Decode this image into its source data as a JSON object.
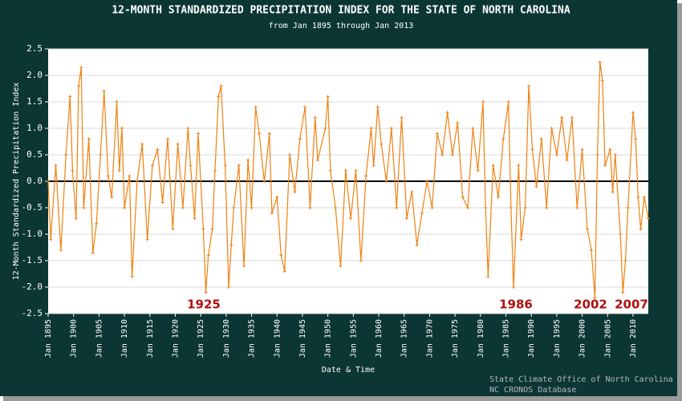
{
  "chart_data": {
    "type": "line",
    "title": "12-MONTH STANDARDIZED PRECIPITATION INDEX FOR THE STATE OF NORTH CAROLINA",
    "subtitle": "from Jan 1895 through Jan 2013",
    "y_label": "12-Month Standardized Precipitation Index",
    "x_label": "Date & Time",
    "credits": [
      "State Climate Office of North Carolina",
      "NC CRONOS Database"
    ],
    "annotations": [
      "1925",
      "1986",
      "2002",
      "2007"
    ],
    "grid": true,
    "xlim": [
      1895,
      2013
    ],
    "ylim": [
      -2.5,
      2.5
    ],
    "xticks": [
      {
        "value": 1895,
        "label": "Jan 1895"
      },
      {
        "value": 1900,
        "label": "Jan 1900"
      },
      {
        "value": 1905,
        "label": "Jan 1905"
      },
      {
        "value": 1910,
        "label": "Jan 1910"
      },
      {
        "value": 1915,
        "label": "Jan 1915"
      },
      {
        "value": 1920,
        "label": "Jan 1920"
      },
      {
        "value": 1925,
        "label": "Jan 1925"
      },
      {
        "value": 1930,
        "label": "Jan 1930"
      },
      {
        "value": 1935,
        "label": "Jan 1935"
      },
      {
        "value": 1940,
        "label": "Jan 1940"
      },
      {
        "value": 1945,
        "label": "Jan 1945"
      },
      {
        "value": 1950,
        "label": "Jan 1950"
      },
      {
        "value": 1955,
        "label": "Jan 1955"
      },
      {
        "value": 1960,
        "label": "Jan 1960"
      },
      {
        "value": 1965,
        "label": "Jan 1965"
      },
      {
        "value": 1970,
        "label": "Jan 1970"
      },
      {
        "value": 1975,
        "label": "Jan 1975"
      },
      {
        "value": 1980,
        "label": "Jan 1980"
      },
      {
        "value": 1985,
        "label": "Jan 1985"
      },
      {
        "value": 1990,
        "label": "Jan 1990"
      },
      {
        "value": 1995,
        "label": "Jan 1995"
      },
      {
        "value": 2000,
        "label": "Jan 2000"
      },
      {
        "value": 2005,
        "label": "Jan 2005"
      },
      {
        "value": 2010,
        "label": "Jan 2010"
      }
    ],
    "yticks": [
      2.5,
      {
        "value": 2,
        "label": "2.0"
      },
      1.5,
      {
        "value": 1,
        "label": "1.0"
      },
      0.5,
      {
        "value": 0,
        "label": "0.0"
      },
      -0.5,
      {
        "value": -1,
        "label": "-1.0"
      },
      -1.5,
      {
        "value": -2,
        "label": "-2.0"
      },
      -2.5
    ],
    "x": [
      1895.0,
      1895.5,
      1896.5,
      1897.5,
      1898.5,
      1899.3,
      1899.8,
      1900.5,
      1901.0,
      1901.5,
      1902.0,
      1903.0,
      1903.8,
      1904.5,
      1905.3,
      1906.0,
      1906.8,
      1907.5,
      1908.5,
      1909.0,
      1909.5,
      1910.0,
      1911.0,
      1911.5,
      1912.5,
      1913.5,
      1914.5,
      1915.5,
      1916.5,
      1917.5,
      1918.5,
      1919.5,
      1920.5,
      1921.5,
      1922.5,
      1923.0,
      1923.8,
      1924.5,
      1925.5,
      1926.0,
      1926.5,
      1927.3,
      1927.8,
      1928.5,
      1929.0,
      1929.8,
      1930.5,
      1931.0,
      1931.5,
      1932.5,
      1933.5,
      1934.3,
      1935.0,
      1935.8,
      1936.5,
      1937.5,
      1938.5,
      1939.0,
      1940.0,
      1940.8,
      1941.5,
      1942.5,
      1943.5,
      1944.5,
      1945.5,
      1946.5,
      1947.5,
      1948.0,
      1949.5,
      1950.0,
      1950.5,
      1951.5,
      1952.5,
      1953.5,
      1954.5,
      1955.5,
      1956.5,
      1957.5,
      1958.5,
      1959.0,
      1959.8,
      1960.5,
      1961.5,
      1962.5,
      1963.5,
      1964.5,
      1965.5,
      1966.5,
      1967.5,
      1968.5,
      1969.5,
      1970.5,
      1971.5,
      1972.5,
      1973.5,
      1974.5,
      1975.5,
      1976.5,
      1977.5,
      1978.5,
      1979.5,
      1980.5,
      1981.0,
      1981.5,
      1982.5,
      1983.5,
      1984.5,
      1985.5,
      1986.0,
      1986.5,
      1987.5,
      1988.0,
      1988.8,
      1989.5,
      1990.2,
      1991.0,
      1992.0,
      1993.0,
      1994.0,
      1995.0,
      1996.0,
      1997.0,
      1998.0,
      1999.0,
      2000.0,
      2001.0,
      2001.8,
      2002.5,
      2003.0,
      2003.5,
      2004.0,
      2004.5,
      2005.5,
      2006.0,
      2006.5,
      2007.5,
      2008.0,
      2008.5,
      2009.0,
      2010.0,
      2010.5,
      2011.0,
      2011.5,
      2012.2,
      2013.0
    ],
    "series": [
      {
        "name": "12-Month SPI",
        "color": "#f08010",
        "values": [
          0.0,
          -1.1,
          0.3,
          -1.3,
          0.5,
          1.6,
          0.2,
          -0.7,
          1.8,
          2.15,
          -0.5,
          0.8,
          -1.35,
          -0.8,
          0.5,
          1.7,
          0.1,
          -0.3,
          1.5,
          0.2,
          1.0,
          -0.5,
          0.1,
          -1.8,
          0.0,
          0.7,
          -1.1,
          0.3,
          0.6,
          -0.4,
          0.8,
          -0.9,
          0.7,
          -0.5,
          1.0,
          0.3,
          -0.7,
          0.9,
          -0.9,
          -2.1,
          -1.4,
          -0.9,
          0.2,
          1.6,
          1.8,
          0.3,
          -2.0,
          -1.2,
          -0.5,
          0.3,
          -1.6,
          0.4,
          -0.5,
          1.4,
          0.9,
          0.0,
          0.9,
          -0.6,
          -0.3,
          -1.4,
          -1.7,
          0.5,
          -0.2,
          0.8,
          1.4,
          -0.5,
          1.2,
          0.4,
          1.0,
          1.6,
          0.2,
          -0.5,
          -1.6,
          0.2,
          -0.7,
          0.2,
          -1.5,
          0.1,
          1.0,
          0.3,
          1.4,
          0.7,
          0.0,
          1.0,
          -0.5,
          1.2,
          -0.7,
          -0.2,
          -1.2,
          -0.6,
          0.0,
          -0.5,
          0.9,
          0.5,
          1.3,
          0.5,
          1.1,
          -0.3,
          -0.5,
          1.0,
          0.2,
          1.5,
          -0.5,
          -1.8,
          0.3,
          -0.3,
          0.8,
          1.5,
          -0.5,
          -2.0,
          0.3,
          -1.1,
          -0.5,
          1.8,
          0.6,
          -0.1,
          0.8,
          -0.5,
          1.0,
          0.5,
          1.2,
          0.4,
          1.2,
          -0.5,
          0.6,
          -0.9,
          -1.3,
          -2.2,
          0.5,
          2.25,
          1.9,
          0.3,
          0.6,
          -0.2,
          0.5,
          -1.0,
          -2.1,
          -1.5,
          -0.5,
          1.3,
          0.8,
          -0.3,
          -0.9,
          -0.3,
          -0.7
        ]
      }
    ]
  }
}
